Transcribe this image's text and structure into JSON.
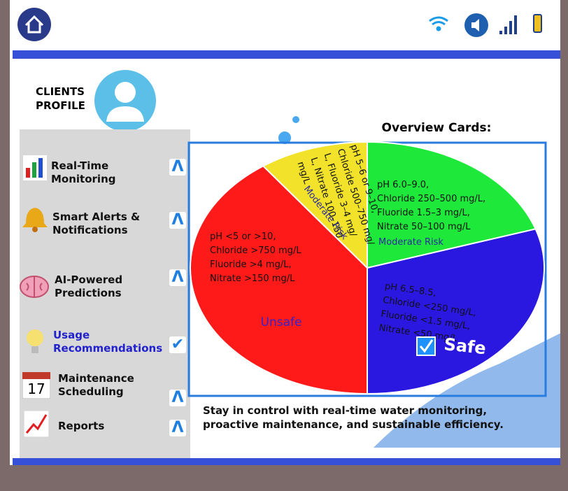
{
  "profile": {
    "title": [
      "CLIENTS",
      "PROFILE"
    ]
  },
  "nav": [
    {
      "label": [
        "Real-Time",
        "Monitoring"
      ]
    },
    {
      "label": [
        "Smart Alerts &",
        "Notifications"
      ]
    },
    {
      "label": [
        "AI-Powered",
        "Predictions"
      ]
    },
    {
      "label": [
        "Usage",
        "Recommendations"
      ]
    },
    {
      "label": [
        "Maintenance",
        "Scheduling"
      ]
    },
    {
      "label": [
        "Reports"
      ]
    }
  ],
  "calendar_day": "17",
  "chart_data": {
    "type": "pie",
    "title": "Overview Cards:",
    "categories": [
      "Moderate Risk",
      "Safe",
      "Unsafe",
      "Moderate Risk"
    ],
    "values": [
      20,
      30,
      40,
      10
    ],
    "colors": [
      "#1ee83a",
      "#2a17e0",
      "#ff1a1a",
      "#f2e32a"
    ],
    "details": [
      [
        "pH 6.0–9.0,",
        "Chloride 250–500 mg/L,",
        "Fluoride 1.5–3 mg/L,",
        "Nitrate 50–100 mg/L"
      ],
      [
        "pH 6.5–8.5,",
        "Chloride <250 mg/L,",
        "Fluoride <1.5 mg/L,",
        "Nitrate <50 mg/L"
      ],
      [
        "pH <5 or >10,",
        "Chloride >750 mg/L",
        "Fluoride >4 mg/L,",
        "Nitrate >150 mg/L"
      ],
      [
        "pH 5–6 or 9–10,",
        "Chloride 500–750 mg/",
        "L, Fluoride 3–4 mg/",
        "L, Nitrate 100–150",
        "mg/L"
      ]
    ]
  },
  "footer": "Stay in control with real-time water monitoring, proactive maintenance, and sustainable efficiency."
}
